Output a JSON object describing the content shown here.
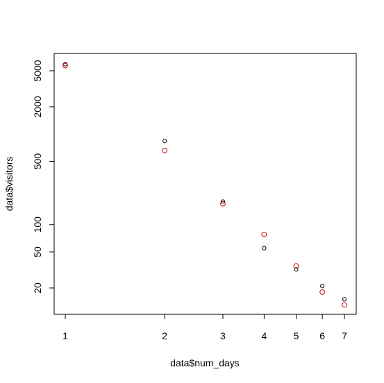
{
  "chart_data": {
    "type": "scatter",
    "xlabel": "data$num_days",
    "ylabel": "data$visitors",
    "x_scale": "log",
    "y_scale": "log",
    "xlim": [
      1,
      7
    ],
    "ylim": [
      10,
      6000
    ],
    "x_ticks": [
      1,
      2,
      3,
      4,
      5,
      6,
      7
    ],
    "x_tick_labels": [
      "1",
      "2",
      "3",
      "4",
      "5",
      "6",
      "7"
    ],
    "y_ticks": [
      20,
      50,
      100,
      500,
      2000,
      5000
    ],
    "y_tick_labels": [
      "20",
      "50",
      "100",
      "500",
      "2000",
      "5000"
    ],
    "grid": false,
    "legend": "none",
    "series": [
      {
        "color": "#000000",
        "marker": "open-circle",
        "x": [
          1,
          2,
          3,
          4,
          5,
          6,
          7
        ],
        "y": [
          5900,
          840,
          180,
          55,
          32,
          21,
          15
        ]
      },
      {
        "color": "#cc0000",
        "marker": "open-circle",
        "x": [
          1,
          2,
          3,
          4,
          5,
          6,
          7
        ],
        "y": [
          5700,
          660,
          170,
          78,
          35,
          18,
          13
        ]
      }
    ]
  }
}
